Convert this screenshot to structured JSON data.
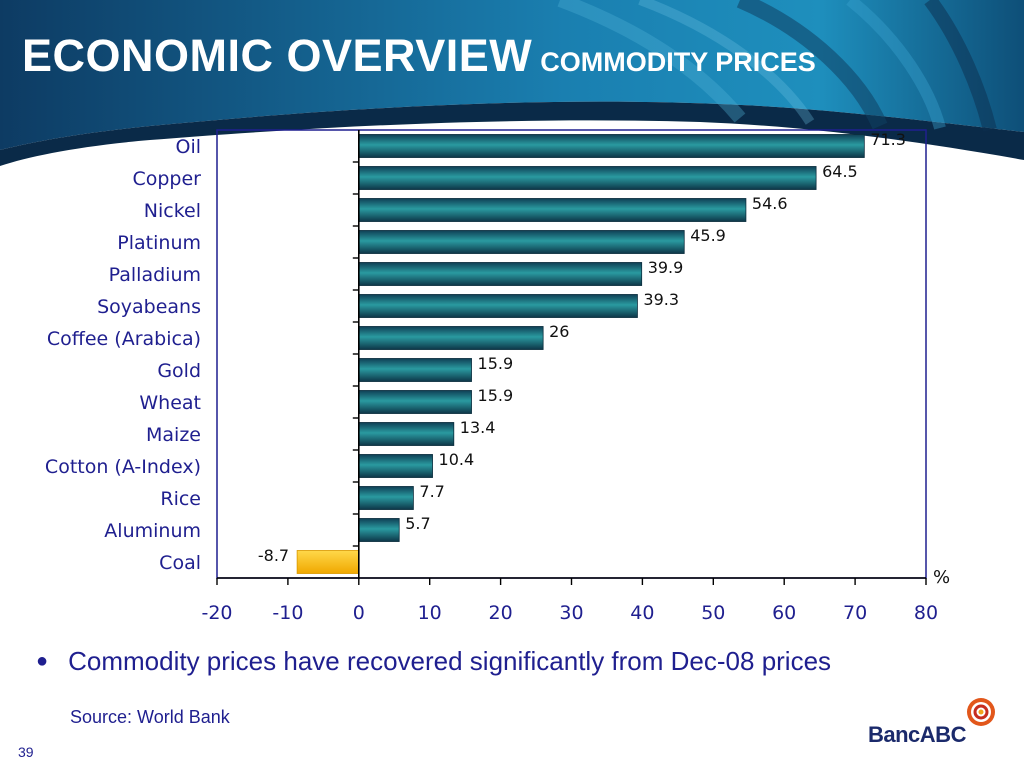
{
  "slide": {
    "title": "ECONOMIC OVERVIEW",
    "subtitle": "COMMODITY PRICES",
    "bullet": "Commodity prices have recovered significantly from Dec-08 prices",
    "source": "Source: World Bank",
    "page_number": "39",
    "logo_text": "BancABC"
  },
  "colors": {
    "header_dark": "#0b2d4d",
    "header_light": "#1e84b3",
    "bar_positive": "#1a6f7a",
    "bar_negative": "#f3b400",
    "axis": "#1f1f8f"
  },
  "chart_data": {
    "type": "bar",
    "orientation": "horizontal",
    "categories": [
      "Oil",
      "Copper",
      "Nickel",
      "Platinum",
      "Palladium",
      "Soyabeans",
      "Coffee (Arabica)",
      "Gold",
      "Wheat",
      "Maize",
      "Cotton (A-Index)",
      "Rice",
      "Aluminum",
      "Coal"
    ],
    "values": [
      71.3,
      64.5,
      54.6,
      45.9,
      39.9,
      39.3,
      26,
      15.9,
      15.9,
      13.4,
      10.4,
      7.7,
      5.7,
      -8.7
    ],
    "value_labels": [
      "71.3",
      "64.5",
      "54.6",
      "45.9",
      "39.9",
      "39.3",
      "26",
      "15.9",
      "15.9",
      "13.4",
      "10.4",
      "7.7",
      "5.7",
      "-8.7"
    ],
    "xlim": [
      -20,
      80
    ],
    "xticks": [
      "-20",
      "-10",
      "0",
      "10",
      "20",
      "30",
      "40",
      "50",
      "60",
      "70",
      "80"
    ],
    "unit_label": "%",
    "grid": false
  }
}
